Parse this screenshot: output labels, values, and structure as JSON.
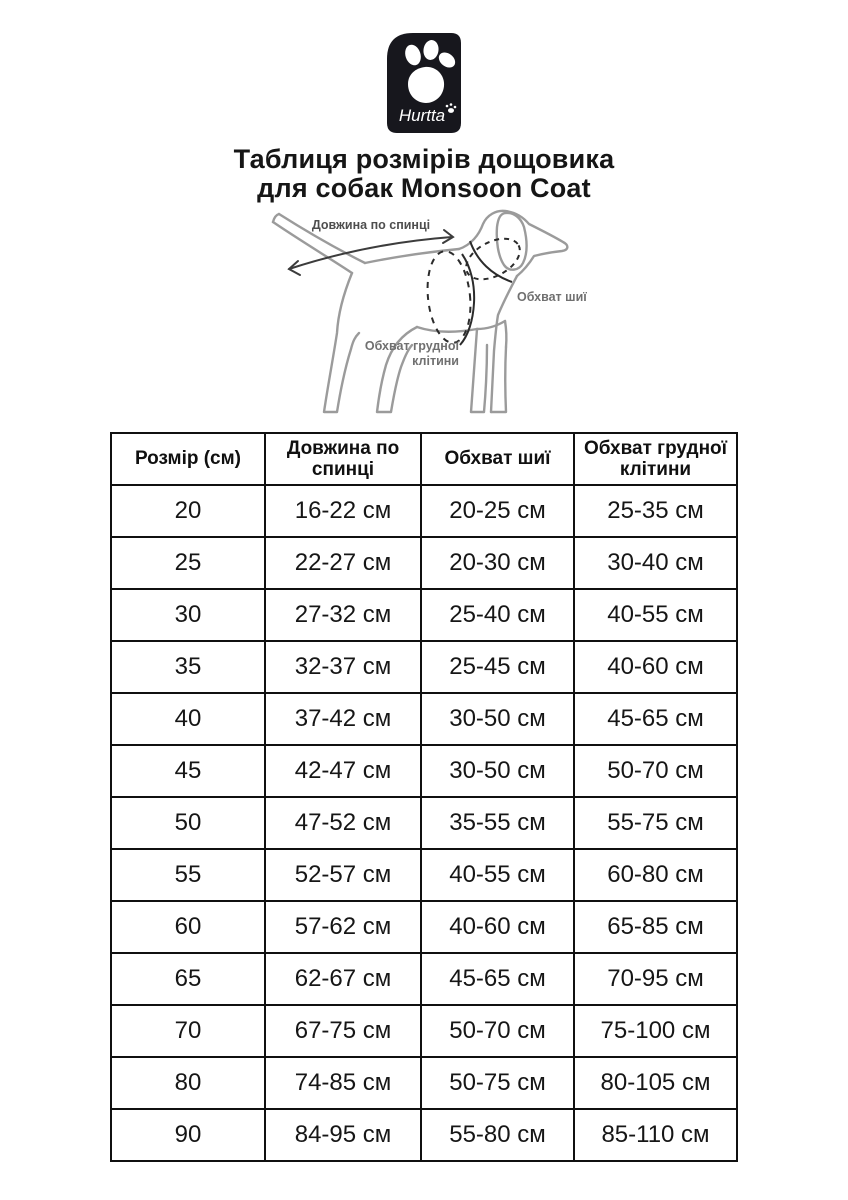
{
  "logo": {
    "brand": "Hurtta",
    "bg_color": "#17171d",
    "fg_color": "#ffffff"
  },
  "title": {
    "line1": "Таблиця розмірів дощовика",
    "line2": "для собак Monsoon Coat"
  },
  "diagram": {
    "labels": {
      "back_length": "Довжина по спинці",
      "neck_girth": "Обхват шиї",
      "chest_girth_line1": "Обхват грудної",
      "chest_girth_line2": "клітини"
    },
    "stroke_color": "#9b9b9b",
    "measure_color": "#2b2b2b"
  },
  "chart_data": {
    "type": "table",
    "title": "Таблиця розмірів дощовика для собак Monsoon Coat",
    "columns": [
      "Розмір (см)",
      "Довжина по спинці",
      "Обхват шиї",
      "Обхват грудної клітини"
    ],
    "rows": [
      [
        "20",
        "16-22 см",
        "20-25 см",
        "25-35 см"
      ],
      [
        "25",
        "22-27 см",
        "20-30 см",
        "30-40 см"
      ],
      [
        "30",
        "27-32 см",
        "25-40 см",
        "40-55 см"
      ],
      [
        "35",
        "32-37 см",
        "25-45 см",
        "40-60 см"
      ],
      [
        "40",
        "37-42 см",
        "30-50 см",
        "45-65 см"
      ],
      [
        "45",
        "42-47 см",
        "30-50 см",
        "50-70 см"
      ],
      [
        "50",
        "47-52 см",
        "35-55 см",
        "55-75 см"
      ],
      [
        "55",
        "52-57 см",
        "40-55 см",
        "60-80 см"
      ],
      [
        "60",
        "57-62 см",
        "40-60 см",
        "65-85 см"
      ],
      [
        "65",
        "62-67 см",
        "45-65 см",
        "70-95 см"
      ],
      [
        "70",
        "67-75 см",
        "50-70 см",
        "75-100 см"
      ],
      [
        "80",
        "74-85 см",
        "50-75 см",
        "80-105 см"
      ],
      [
        "90",
        "84-95 см",
        "55-80 см",
        "85-110 см"
      ]
    ]
  }
}
